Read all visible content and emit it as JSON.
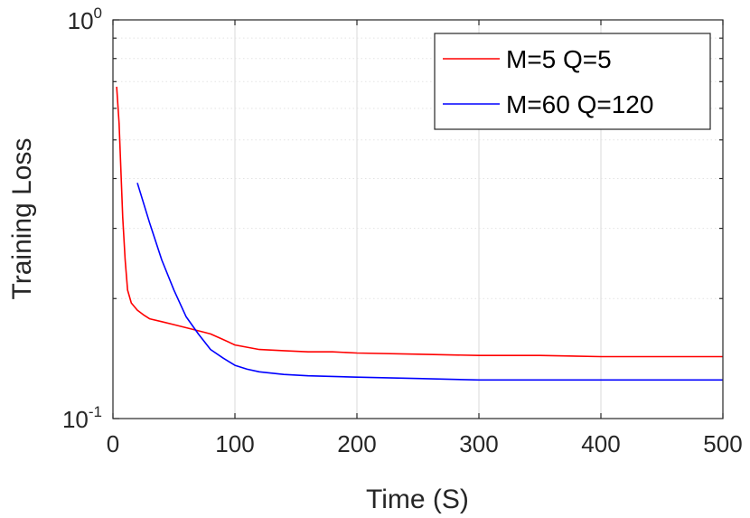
{
  "chart_data": {
    "type": "line",
    "title": "",
    "xlabel": "Time (S)",
    "ylabel": "Training Loss",
    "xlim": [
      0,
      500
    ],
    "ylim": [
      0.1,
      1.0
    ],
    "yscale": "log",
    "xticks": [
      "0",
      "100",
      "200",
      "300",
      "400",
      "500"
    ],
    "yticks": [
      {
        "base": "10",
        "exp": "-1"
      },
      {
        "base": "10",
        "exp": "0"
      }
    ],
    "grid": true,
    "legend_position": "top-right",
    "series": [
      {
        "name": "M=5 Q=5",
        "color": "#ff0000",
        "x": [
          3,
          5,
          8,
          10,
          12,
          15,
          20,
          25,
          30,
          40,
          50,
          60,
          70,
          80,
          90,
          100,
          110,
          120,
          140,
          160,
          180,
          200,
          250,
          300,
          350,
          400,
          450,
          500
        ],
        "y": [
          0.68,
          0.55,
          0.32,
          0.25,
          0.21,
          0.195,
          0.187,
          0.182,
          0.178,
          0.175,
          0.172,
          0.169,
          0.166,
          0.163,
          0.158,
          0.153,
          0.151,
          0.149,
          0.148,
          0.147,
          0.147,
          0.146,
          0.145,
          0.144,
          0.144,
          0.143,
          0.143,
          0.143
        ]
      },
      {
        "name": "M=60 Q=120",
        "color": "#0000ff",
        "x": [
          20,
          30,
          40,
          50,
          60,
          70,
          80,
          90,
          100,
          110,
          120,
          140,
          160,
          200,
          250,
          300,
          350,
          400,
          450,
          500
        ],
        "y": [
          0.39,
          0.31,
          0.25,
          0.21,
          0.18,
          0.163,
          0.149,
          0.142,
          0.136,
          0.133,
          0.131,
          0.129,
          0.128,
          0.127,
          0.126,
          0.125,
          0.125,
          0.125,
          0.125,
          0.125
        ]
      }
    ]
  }
}
